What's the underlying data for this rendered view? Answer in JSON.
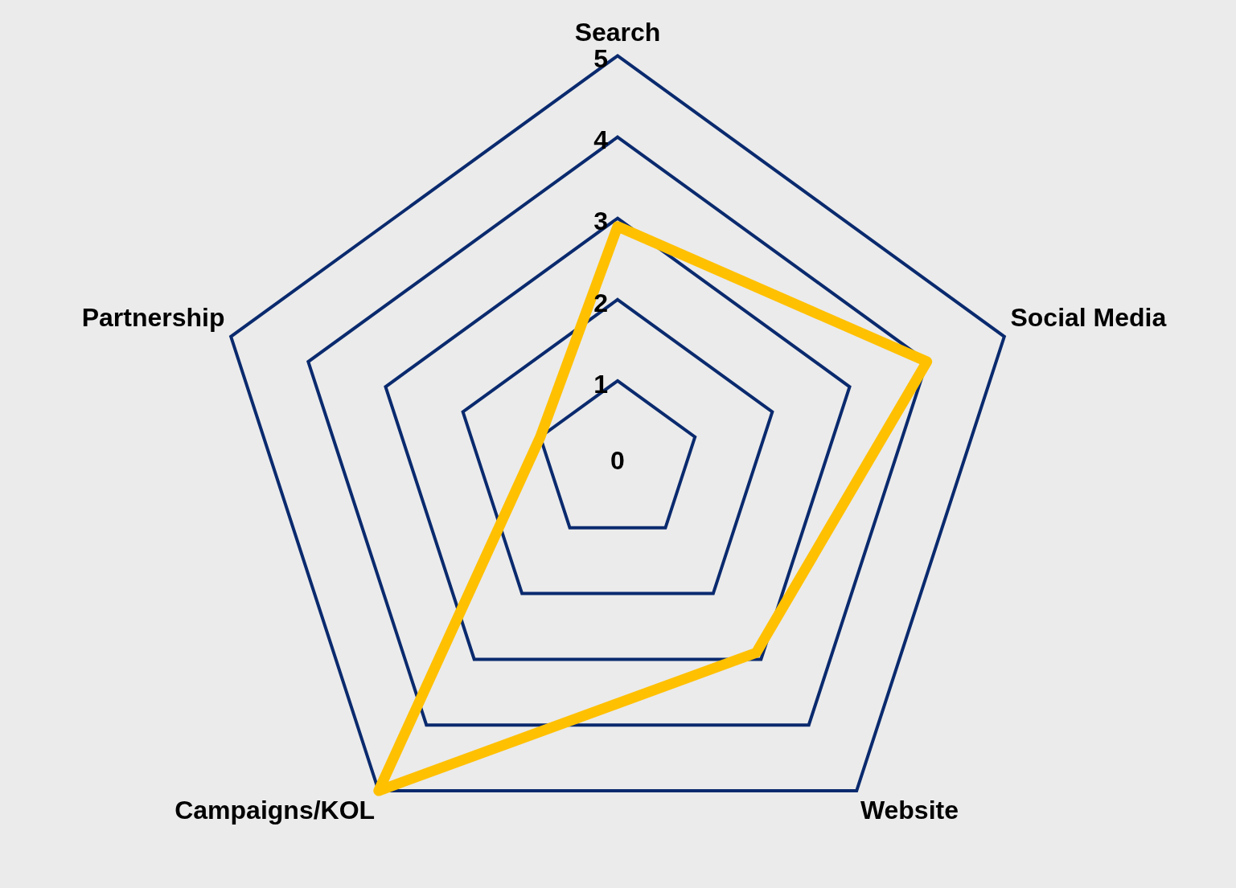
{
  "chart_data": {
    "type": "radar",
    "categories": [
      "Search",
      "Social Media",
      "Website",
      "Campaigns/KOL",
      "Partnership"
    ],
    "series": [
      {
        "color": "#ffc000",
        "values": [
          2.9,
          4,
          2.9,
          5,
          1
        ]
      }
    ],
    "ylim": [
      0,
      5
    ],
    "yticks": [
      0,
      1,
      2,
      3,
      4,
      5
    ],
    "grid": true,
    "legend": false
  }
}
